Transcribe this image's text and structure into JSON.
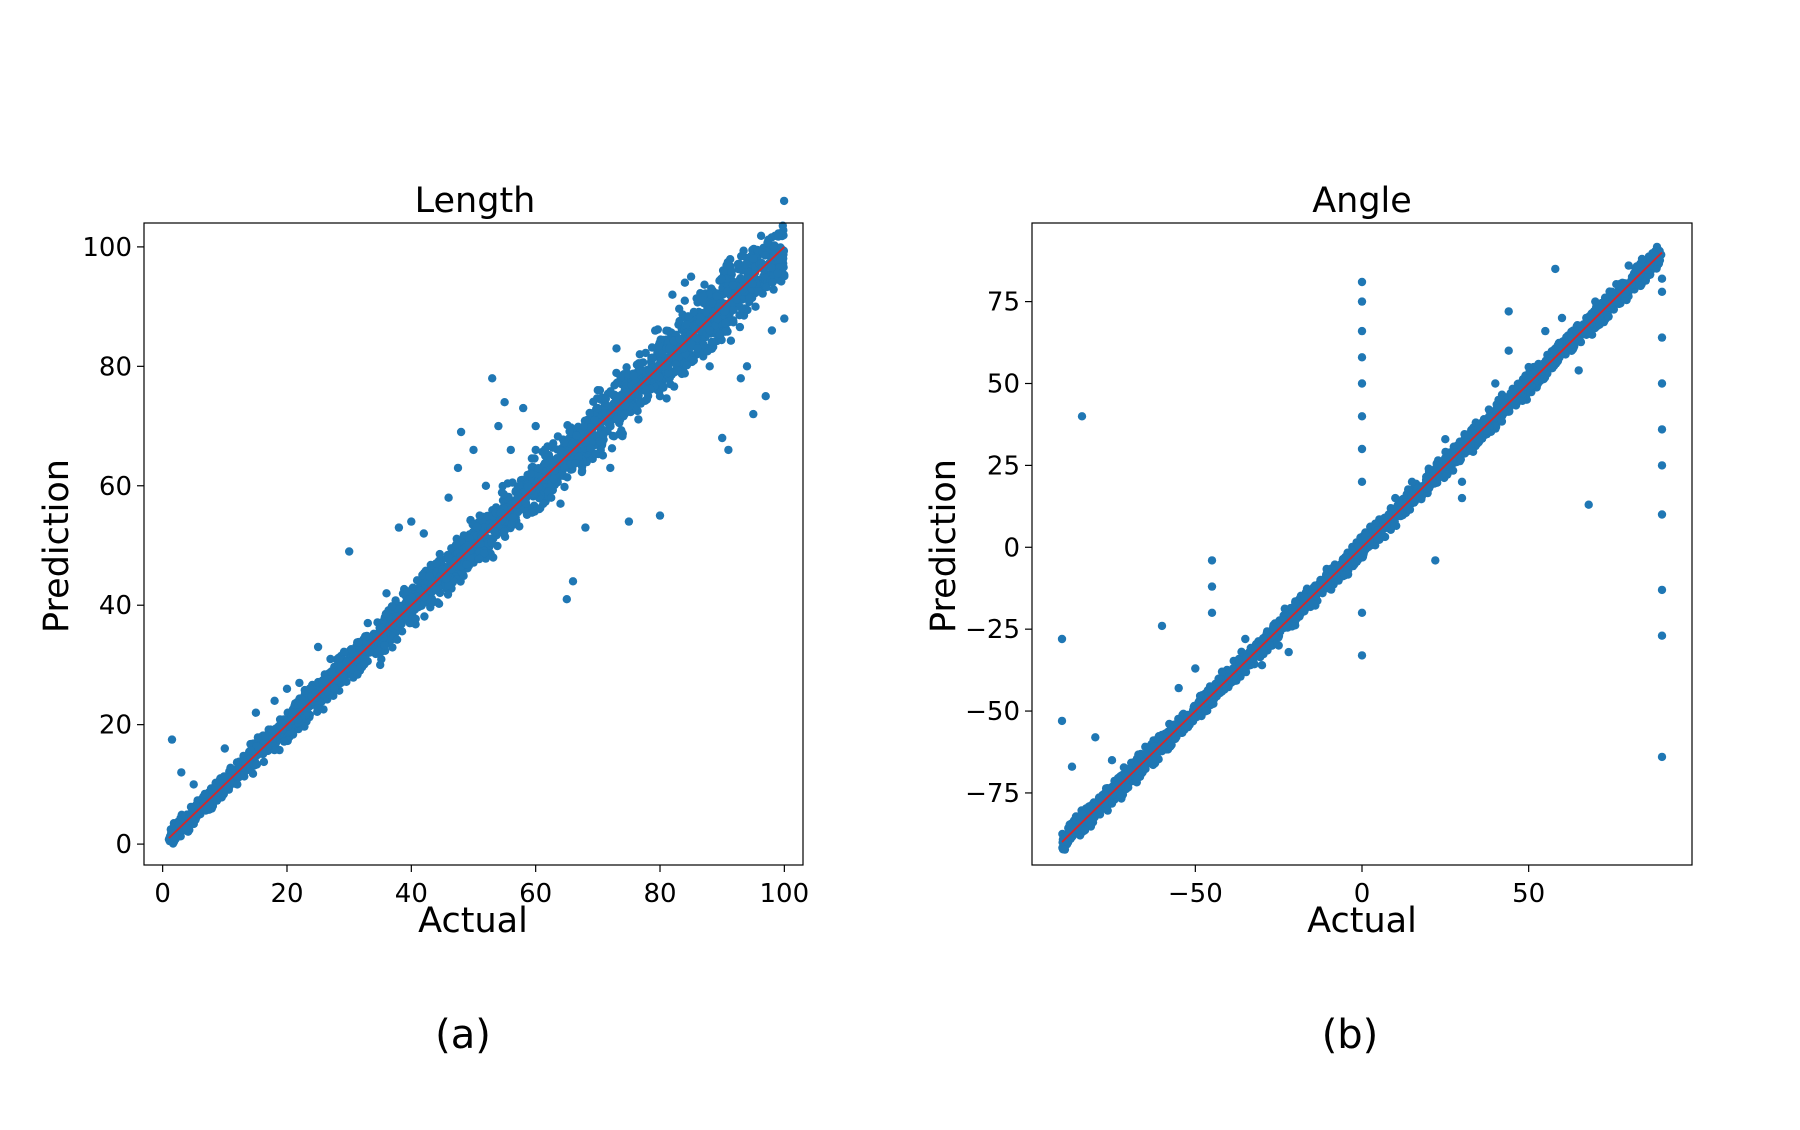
{
  "chart_data": [
    {
      "type": "scatter",
      "title": "Length",
      "xlabel": "Actual",
      "ylabel": "Prediction",
      "caption": "(a)",
      "xlim": [
        -3,
        103
      ],
      "ylim": [
        -3.5,
        104
      ],
      "xticks": [
        0,
        20,
        40,
        60,
        80,
        100
      ],
      "yticks": [
        0,
        20,
        40,
        60,
        80,
        100
      ],
      "xtick_labels": [
        "0",
        "20",
        "40",
        "60",
        "80",
        "100"
      ],
      "ytick_labels": [
        "0",
        "20",
        "40",
        "60",
        "80",
        "100"
      ],
      "grid": false,
      "point_color": "#1f77b4",
      "line_color": "#d62728",
      "reference_line": [
        [
          1,
          1
        ],
        [
          100,
          100
        ]
      ],
      "points": [
        [
          1.5,
          17.5
        ],
        [
          3,
          12
        ],
        [
          5,
          10
        ],
        [
          10,
          16
        ],
        [
          15,
          22
        ],
        [
          20,
          26
        ],
        [
          25,
          33
        ],
        [
          30,
          49
        ],
        [
          35,
          30
        ],
        [
          38,
          53
        ],
        [
          40,
          54
        ],
        [
          42,
          52
        ],
        [
          45,
          46
        ],
        [
          46,
          58
        ],
        [
          48,
          69
        ],
        [
          50,
          66
        ],
        [
          52,
          60
        ],
        [
          53,
          78
        ],
        [
          54,
          70
        ],
        [
          55,
          74
        ],
        [
          56,
          66
        ],
        [
          58,
          73
        ],
        [
          60,
          66
        ],
        [
          62,
          59
        ],
        [
          64,
          57
        ],
        [
          65,
          41
        ],
        [
          66,
          44
        ],
        [
          68,
          53
        ],
        [
          70,
          76
        ],
        [
          72,
          63
        ],
        [
          73,
          83
        ],
        [
          75,
          54
        ],
        [
          77,
          77
        ],
        [
          80,
          75
        ],
        [
          80,
          55
        ],
        [
          82,
          92
        ],
        [
          85,
          95
        ],
        [
          86,
          83
        ],
        [
          88,
          80
        ],
        [
          90,
          68
        ],
        [
          91,
          66
        ],
        [
          94,
          80
        ],
        [
          95,
          72
        ],
        [
          97,
          75
        ],
        [
          98,
          86
        ],
        [
          100,
          88
        ],
        [
          47.5,
          63
        ],
        [
          60,
          70
        ],
        [
          62.5,
          58
        ],
        [
          70,
          73
        ],
        [
          72,
          72
        ],
        [
          84,
          94
        ],
        [
          88,
          86
        ],
        [
          93,
          78
        ],
        [
          12,
          10
        ],
        [
          18,
          24
        ],
        [
          22,
          27
        ],
        [
          27,
          31
        ],
        [
          33,
          37
        ],
        [
          36,
          42
        ],
        [
          44,
          47
        ],
        [
          51,
          55
        ]
      ]
    },
    {
      "type": "scatter",
      "title": "Angle",
      "xlabel": "Actual",
      "ylabel": "Prediction",
      "caption": "(b)",
      "xlim": [
        -99,
        99
      ],
      "ylim": [
        -97,
        99
      ],
      "xticks": [
        -50,
        0,
        50
      ],
      "yticks": [
        -75,
        -50,
        -25,
        0,
        25,
        50,
        75
      ],
      "xtick_labels": [
        "−50",
        "0",
        "50"
      ],
      "ytick_labels": [
        "−75",
        "−50",
        "−25",
        "0",
        "25",
        "50",
        "75"
      ],
      "grid": false,
      "point_color": "#1f77b4",
      "line_color": "#d62728",
      "reference_line": [
        [
          -90,
          -90
        ],
        [
          90,
          90
        ]
      ],
      "points": [
        [
          -90,
          -28
        ],
        [
          -90,
          -53
        ],
        [
          -87,
          -67
        ],
        [
          -84,
          40
        ],
        [
          -80,
          -58
        ],
        [
          -75,
          -65
        ],
        [
          -60,
          -24
        ],
        [
          -55,
          -43
        ],
        [
          -50,
          -37
        ],
        [
          -45,
          -4
        ],
        [
          -45,
          -12
        ],
        [
          -45,
          -20
        ],
        [
          -42,
          -38
        ],
        [
          -35,
          -28
        ],
        [
          -30,
          -36
        ],
        [
          -25,
          -30
        ],
        [
          -22,
          -32
        ],
        [
          -20,
          -17
        ],
        [
          -15,
          -14
        ],
        [
          -10,
          -9
        ],
        [
          -5,
          -3
        ],
        [
          0,
          81
        ],
        [
          0,
          75
        ],
        [
          0,
          66
        ],
        [
          0,
          58
        ],
        [
          0,
          50
        ],
        [
          0,
          40
        ],
        [
          0,
          30
        ],
        [
          0,
          20
        ],
        [
          0,
          -20
        ],
        [
          0,
          -33
        ],
        [
          5,
          3
        ],
        [
          8,
          10
        ],
        [
          10,
          15
        ],
        [
          15,
          20
        ],
        [
          20,
          24
        ],
        [
          22,
          -4
        ],
        [
          25,
          33
        ],
        [
          30,
          15
        ],
        [
          30,
          30
        ],
        [
          30,
          20
        ],
        [
          35,
          33
        ],
        [
          40,
          50
        ],
        [
          44,
          60
        ],
        [
          44,
          72
        ],
        [
          45,
          45
        ],
        [
          50,
          55
        ],
        [
          55,
          66
        ],
        [
          58,
          85
        ],
        [
          60,
          70
        ],
        [
          65,
          54
        ],
        [
          68,
          13
        ],
        [
          70,
          75
        ],
        [
          75,
          78
        ],
        [
          80,
          86
        ],
        [
          84,
          88
        ],
        [
          90,
          78
        ],
        [
          90,
          64
        ],
        [
          90,
          50
        ],
        [
          90,
          36
        ],
        [
          90,
          25
        ],
        [
          90,
          10
        ],
        [
          90,
          -13
        ],
        [
          90,
          -27
        ],
        [
          90,
          -64
        ],
        [
          90,
          82
        ],
        [
          88,
          89
        ]
      ]
    }
  ]
}
